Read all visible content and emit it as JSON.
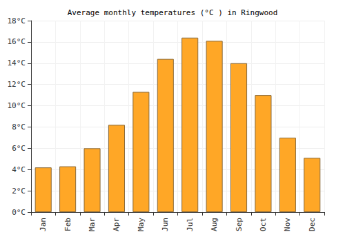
{
  "chart_data": {
    "type": "bar",
    "title": "Average monthly temperatures (°C ) in Ringwood",
    "categories": [
      "Jan",
      "Feb",
      "Mar",
      "Apr",
      "May",
      "Jun",
      "Jul",
      "Aug",
      "Sep",
      "Oct",
      "Nov",
      "Dec"
    ],
    "values": [
      4.2,
      4.3,
      6.0,
      8.2,
      11.3,
      14.4,
      16.4,
      16.1,
      14.0,
      11.0,
      7.0,
      5.1
    ],
    "color": "#ffa726",
    "ylim": [
      0,
      18
    ],
    "yticks": [
      {
        "value": 0,
        "label": "0°C"
      },
      {
        "value": 2,
        "label": "2°C"
      },
      {
        "value": 4,
        "label": "4°C"
      },
      {
        "value": 6,
        "label": "6°C"
      },
      {
        "value": 8,
        "label": "8°C"
      },
      {
        "value": 10,
        "label": "10°C"
      },
      {
        "value": 12,
        "label": "12°C"
      },
      {
        "value": 14,
        "label": "14°C"
      },
      {
        "value": 16,
        "label": "16°C"
      },
      {
        "value": 18,
        "label": "18°C"
      }
    ],
    "grid": true
  }
}
